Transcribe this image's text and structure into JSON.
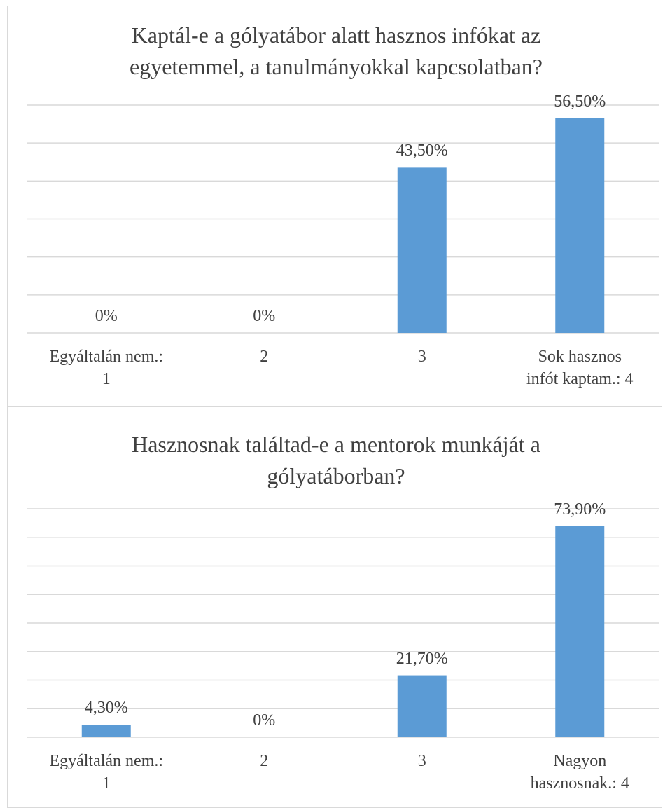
{
  "chart_data": [
    {
      "type": "bar",
      "title": "Kaptál-e a gólyatábor alatt hasznos infókat az\negyetemmel, a tanulmányokkal kapcsolatban?",
      "categories": [
        "Egyáltalán nem.:\n1",
        "2",
        "3",
        "Sok hasznos\ninfót kaptam.: 4"
      ],
      "values": [
        0,
        0,
        43.5,
        56.5
      ],
      "value_labels": [
        "0%",
        "0%",
        "43,50%",
        "56,50%"
      ],
      "color": "#5b9bd5",
      "ylim": [
        0,
        60
      ],
      "yticks": [
        0,
        10,
        20,
        30,
        40,
        50,
        60
      ],
      "grid": true
    },
    {
      "type": "bar",
      "title": "Hasznosnak találtad-e a mentorok munkáját a\ngólyatáborban?",
      "categories": [
        "Egyáltalán nem.:\n1",
        "2",
        "3",
        "Nagyon\nhasznosnak.: 4"
      ],
      "values": [
        4.3,
        0,
        21.7,
        73.9
      ],
      "value_labels": [
        "4,30%",
        "0%",
        "21,70%",
        "73,90%"
      ],
      "color": "#5b9bd5",
      "ylim": [
        0,
        80
      ],
      "yticks": [
        0,
        10,
        20,
        30,
        40,
        50,
        60,
        70,
        80
      ],
      "grid": true
    }
  ]
}
